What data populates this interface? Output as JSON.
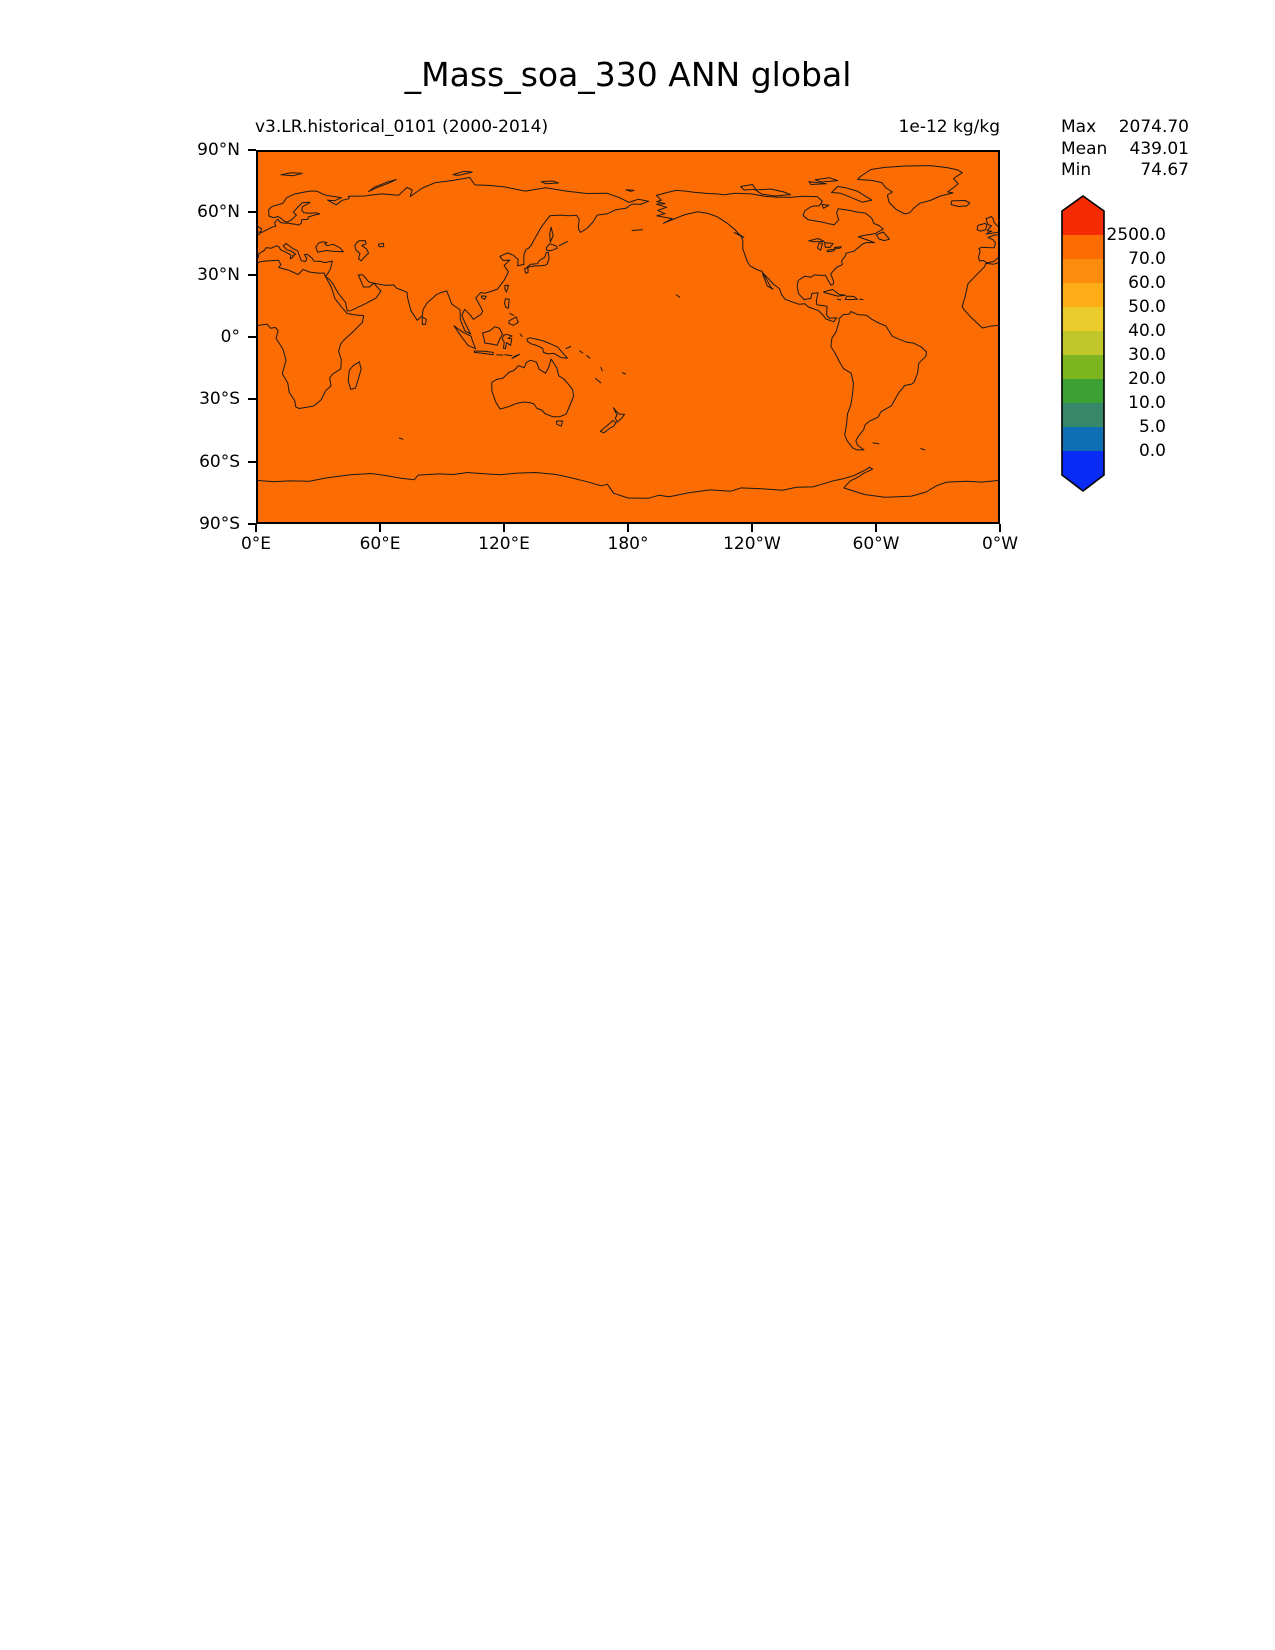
{
  "figure": {
    "title": "_Mass_soa_330 ANN global",
    "subtitle_left": "v3.LR.historical_0101 (2000-2014)",
    "units_label": "1e-12 kg/kg"
  },
  "stats": {
    "rows": [
      {
        "label": "Max",
        "value": "2074.70"
      },
      {
        "label": "Mean",
        "value": "439.01"
      },
      {
        "label": "Min",
        "value": "74.67"
      }
    ]
  },
  "chart_data": {
    "type": "heatmap",
    "variant": "global filled-contour latitude-longitude map",
    "title": "_Mass_soa_330 ANN global",
    "subtitle": "v3.LR.historical_0101 (2000-2014)",
    "units": "1e-12 kg/kg",
    "projection": "equirectangular, longitudes 0°E to 0°W (central longitude 180°), latitudes 90°S to 90°N",
    "x_tick_labels": [
      "0°E",
      "60°E",
      "120°E",
      "180°",
      "120°W",
      "60°W",
      "0°W"
    ],
    "y_tick_labels": [
      "90°N",
      "60°N",
      "30°N",
      "0°",
      "30°S",
      "60°S",
      "90°S"
    ],
    "colorbar": {
      "tick_labels_top_to_bottom": [
        "2500.0",
        "70.0",
        "60.0",
        "50.0",
        "40.0",
        "30.0",
        "20.0",
        "10.0",
        "5.0",
        "0.0"
      ],
      "levels_ascending": [
        0.0,
        5.0,
        10.0,
        20.0,
        30.0,
        40.0,
        50.0,
        60.0,
        70.0,
        2500.0
      ],
      "colors_top_to_bottom": [
        "#F62B01",
        "#FB6C02",
        "#FB8C0E",
        "#FDAD15",
        "#EBCA2C",
        "#C1C62A",
        "#7DB520",
        "#3BA133",
        "#378769",
        "#0E6FB4",
        "#0A2AF6"
      ],
      "extend": "both"
    },
    "field_summary": "entire displayed field lies in the 70.0-2500.0 bin: uniform orange fill with black coastlines",
    "map_fill_color": "#FB6C02",
    "coastline_color": "#1a1a1a",
    "stats": {
      "max": 2074.7,
      "mean": 439.01,
      "min": 74.67
    },
    "grid": false,
    "legend_position": "vertical colorbar at right"
  }
}
